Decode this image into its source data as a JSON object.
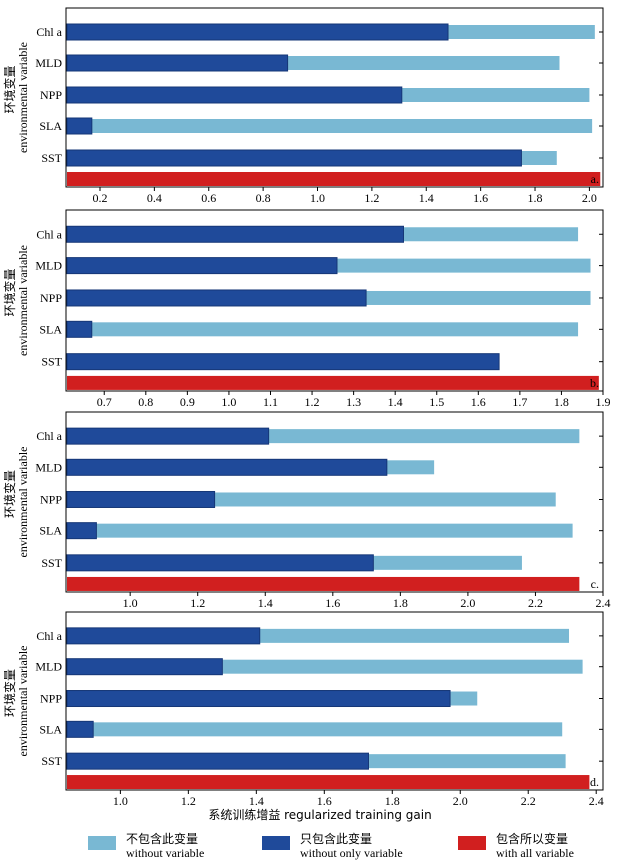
{
  "colors": {
    "without_variable": "#79b8d3",
    "without_only_variable": "#1f4a9a",
    "with_all_variable": "#d11f1f"
  },
  "xlabel": "系统训练增益 regularized training gain",
  "ylabel_cn": "环境变量",
  "ylabel_en": "environmental variable",
  "legend": [
    {
      "cn": "不包含此变量",
      "en": "without variable",
      "color_key": "without_variable"
    },
    {
      "cn": "只包含此变量",
      "en": "without only variable",
      "color_key": "without_only_variable"
    },
    {
      "cn": "包含所以变量",
      "en": "with all variable",
      "color_key": "with_all_variable"
    }
  ],
  "chart_data": [
    {
      "type": "bar",
      "panel": "a.",
      "categories": [
        "Chl a",
        "MLD",
        "NPP",
        "SLA",
        "SST"
      ],
      "series": [
        {
          "name": "without variable",
          "values": [
            2.02,
            1.89,
            2.0,
            2.01,
            1.88
          ]
        },
        {
          "name": "without only variable",
          "values": [
            1.48,
            0.89,
            1.31,
            0.17,
            1.75
          ]
        }
      ],
      "with_all_variable": 2.04,
      "xlim": [
        0.075,
        2.05
      ],
      "xticks": [
        0.2,
        0.4,
        0.6,
        0.8,
        1.0,
        1.2,
        1.4,
        1.6,
        1.8,
        2.0
      ],
      "xticklabels": [
        "0.2",
        "0.4",
        "0.6",
        "0.8",
        "1.0",
        "1.2",
        "1.4",
        "1.6",
        "1.8",
        "2.0"
      ]
    },
    {
      "type": "bar",
      "panel": "b.",
      "categories": [
        "Chl a",
        "MLD",
        "NPP",
        "SLA",
        "SST"
      ],
      "series": [
        {
          "name": "without variable",
          "values": [
            1.84,
            1.87,
            1.87,
            1.84,
            1.63
          ]
        },
        {
          "name": "without only variable",
          "values": [
            1.42,
            1.26,
            1.33,
            0.67,
            1.65
          ]
        }
      ],
      "with_all_variable": 1.89,
      "xlim": [
        0.608,
        1.9
      ],
      "xticks": [
        0.7,
        0.8,
        0.9,
        1.0,
        1.1,
        1.2,
        1.3,
        1.4,
        1.5,
        1.6,
        1.7,
        1.8,
        1.9
      ],
      "xticklabels": [
        "0.7",
        "0.8",
        "0.9",
        "1.0",
        "1.1",
        "1.2",
        "1.3",
        "1.4",
        "1.5",
        "1.6",
        "1.7",
        "1.8",
        "1.9"
      ]
    },
    {
      "type": "bar",
      "panel": "c.",
      "categories": [
        "Chl a",
        "MLD",
        "NPP",
        "SLA",
        "SST"
      ],
      "series": [
        {
          "name": "without variable",
          "values": [
            2.33,
            1.9,
            2.26,
            2.31,
            2.16
          ]
        },
        {
          "name": "without only variable",
          "values": [
            1.41,
            1.76,
            1.25,
            0.9,
            1.72
          ]
        }
      ],
      "with_all_variable": 2.33,
      "xlim": [
        0.81,
        2.4
      ],
      "xticks": [
        1.0,
        1.2,
        1.4,
        1.6,
        1.8,
        2.0,
        2.2,
        2.4
      ],
      "xticklabels": [
        "1.0",
        "1.2",
        "1.4",
        "1.6",
        "1.8",
        "2.0",
        "2.2",
        "2.4"
      ]
    },
    {
      "type": "bar",
      "panel": "d.",
      "categories": [
        "Chl a",
        "MLD",
        "NPP",
        "SLA",
        "SST"
      ],
      "series": [
        {
          "name": "without variable",
          "values": [
            2.32,
            2.36,
            2.05,
            2.3,
            2.31
          ]
        },
        {
          "name": "without only variable",
          "values": [
            1.41,
            1.3,
            1.97,
            0.92,
            1.73
          ]
        }
      ],
      "with_all_variable": 2.38,
      "xlim": [
        0.84,
        2.42
      ],
      "xticks": [
        1.0,
        1.2,
        1.4,
        1.6,
        1.8,
        2.0,
        2.2,
        2.4
      ],
      "xticklabels": [
        "1.0",
        "1.2",
        "1.4",
        "1.6",
        "1.8",
        "2.0",
        "2.2",
        "2.4"
      ]
    }
  ]
}
